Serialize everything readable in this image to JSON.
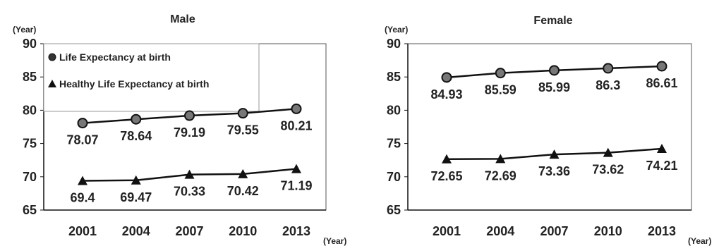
{
  "chart_data": [
    {
      "type": "line",
      "title": "Male",
      "ylabel": "(Year)",
      "xlabel": "(Year)",
      "categories": [
        "2001",
        "2004",
        "2007",
        "2010",
        "2013"
      ],
      "ylim": [
        65,
        90
      ],
      "yticks": [
        "90",
        "85",
        "80",
        "75",
        "70",
        "65"
      ],
      "legend_position": "top-left",
      "series": [
        {
          "name": "Life Expectancy at birth",
          "marker": "circle",
          "values": [
            78.07,
            78.64,
            79.19,
            79.55,
            80.21
          ],
          "labels": [
            "78.07",
            "78.64",
            "79.19",
            "79.55",
            "80.21"
          ]
        },
        {
          "name": "Healthy Life Expectancy at birth",
          "marker": "triangle",
          "values": [
            69.4,
            69.47,
            70.33,
            70.42,
            71.19
          ],
          "labels": [
            "69.4",
            "69.47",
            "70.33",
            "70.42",
            "71.19"
          ]
        }
      ]
    },
    {
      "type": "line",
      "title": "Female",
      "ylabel": "(Year)",
      "xlabel": "(Year)",
      "categories": [
        "2001",
        "2004",
        "2007",
        "2010",
        "2013"
      ],
      "ylim": [
        65,
        90
      ],
      "yticks": [
        "90",
        "85",
        "80",
        "75",
        "70",
        "65"
      ],
      "series": [
        {
          "name": "",
          "marker": "circle",
          "values": [
            84.93,
            85.59,
            85.99,
            86.3,
            86.61
          ],
          "labels": [
            "84.93",
            "85.59",
            "85.99",
            "86.3",
            "86.61"
          ]
        },
        {
          "name": "",
          "marker": "triangle",
          "values": [
            72.65,
            72.69,
            73.36,
            73.62,
            74.21
          ],
          "labels": [
            "72.65",
            "72.69",
            "73.36",
            "73.62",
            "74.21"
          ]
        }
      ]
    }
  ]
}
